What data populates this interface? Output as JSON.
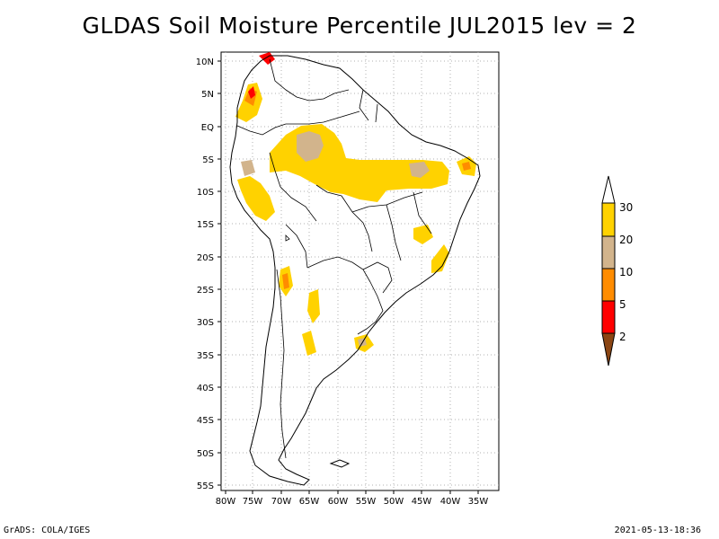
{
  "map": {
    "title": "GLDAS Soil Moisture Percentile JUL2015 lev = 2",
    "lat_labels": [
      "10N",
      "5N",
      "EQ",
      "5S",
      "10S",
      "15S",
      "20S",
      "25S",
      "30S",
      "35S",
      "40S",
      "45S",
      "50S",
      "55S"
    ],
    "lon_labels": [
      "80W",
      "75W",
      "70W",
      "65W",
      "60W",
      "55W",
      "50W",
      "45W",
      "40W",
      "35W"
    ],
    "colorbar": {
      "levels": [
        "30",
        "20",
        "10",
        "5",
        "2"
      ],
      "colors": {
        "above_30": "#ffffff",
        "20_30": "#ffd200",
        "10_20": "#d2b48c",
        "5_10": "#ff8c00",
        "2_5": "#ff0000",
        "below_2": "#8b4513"
      }
    },
    "footer_left": "GrADS: COLA/IGES",
    "footer_right": "2021-05-13-18:36"
  }
}
